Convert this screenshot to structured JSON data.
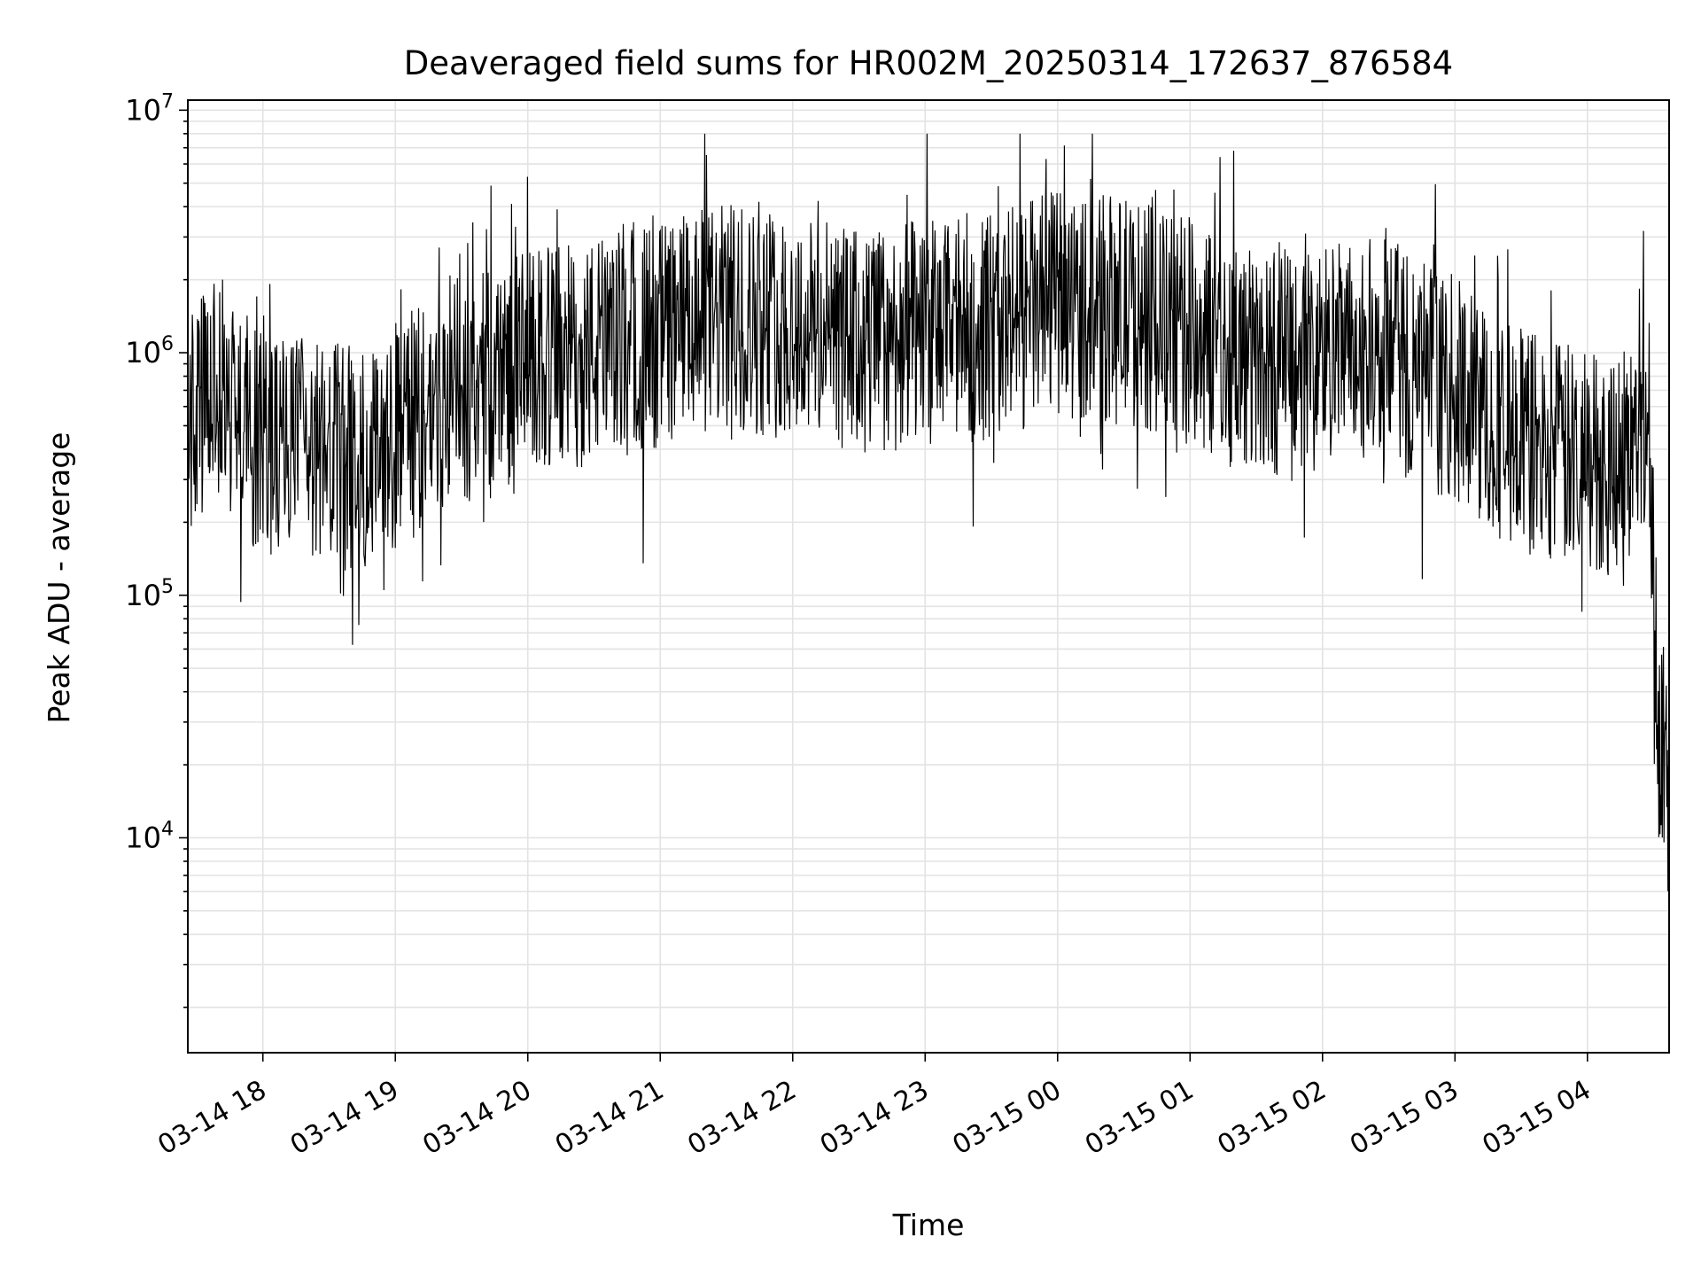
{
  "chart_data": {
    "type": "line",
    "title": "Deaveraged field sums for HR002M_20250314_172637_876584",
    "xlabel": "Time",
    "ylabel": "Peak ADU - average",
    "yscale": "log",
    "ylim": [
      1300,
      11000000
    ],
    "xlim": [
      "2025-03-14 17:26",
      "2025-03-15 04:37"
    ],
    "grid": true,
    "line_color": "#000000",
    "x_ticks": [
      "03-14 18",
      "03-14 19",
      "03-14 20",
      "03-14 21",
      "03-14 22",
      "03-14 23",
      "03-15 00",
      "03-15 01",
      "03-15 02",
      "03-15 03",
      "03-15 04"
    ],
    "y_ticks": [
      {
        "value": 10000,
        "base": "10",
        "exp": "4"
      },
      {
        "value": 100000,
        "base": "10",
        "exp": "5"
      },
      {
        "value": 1000000,
        "base": "10",
        "exp": "6"
      },
      {
        "value": 10000000,
        "base": "10",
        "exp": "7"
      }
    ],
    "series": [
      {
        "x": [
          "2025-03-14 17:26",
          "2025-03-14 17:40",
          "2025-03-14 18:00",
          "2025-03-14 18:20",
          "2025-03-14 18:40",
          "2025-03-14 19:00",
          "2025-03-14 19:30",
          "2025-03-14 20:00",
          "2025-03-14 20:30",
          "2025-03-14 21:00",
          "2025-03-14 21:30",
          "2025-03-14 22:00",
          "2025-03-14 22:30",
          "2025-03-14 23:00",
          "2025-03-14 23:30",
          "2025-03-15 00:00",
          "2025-03-15 00:30",
          "2025-03-15 01:00",
          "2025-03-15 01:30",
          "2025-03-15 02:00",
          "2025-03-15 02:30",
          "2025-03-15 03:00",
          "2025-03-15 03:20",
          "2025-03-15 03:40",
          "2025-03-15 04:00",
          "2025-03-15 04:20",
          "2025-03-15 04:28",
          "2025-03-15 04:32",
          "2025-03-15 04:37"
        ],
        "y": [
          500000,
          700000,
          450000,
          380000,
          360000,
          450000,
          700000,
          900000,
          1000000,
          1200000,
          1400000,
          1300000,
          1100000,
          1200000,
          1300000,
          1600000,
          1500000,
          1200000,
          900000,
          1000000,
          1000000,
          700000,
          500000,
          400000,
          350000,
          400000,
          600000,
          30000,
          15000
        ]
      }
    ]
  }
}
